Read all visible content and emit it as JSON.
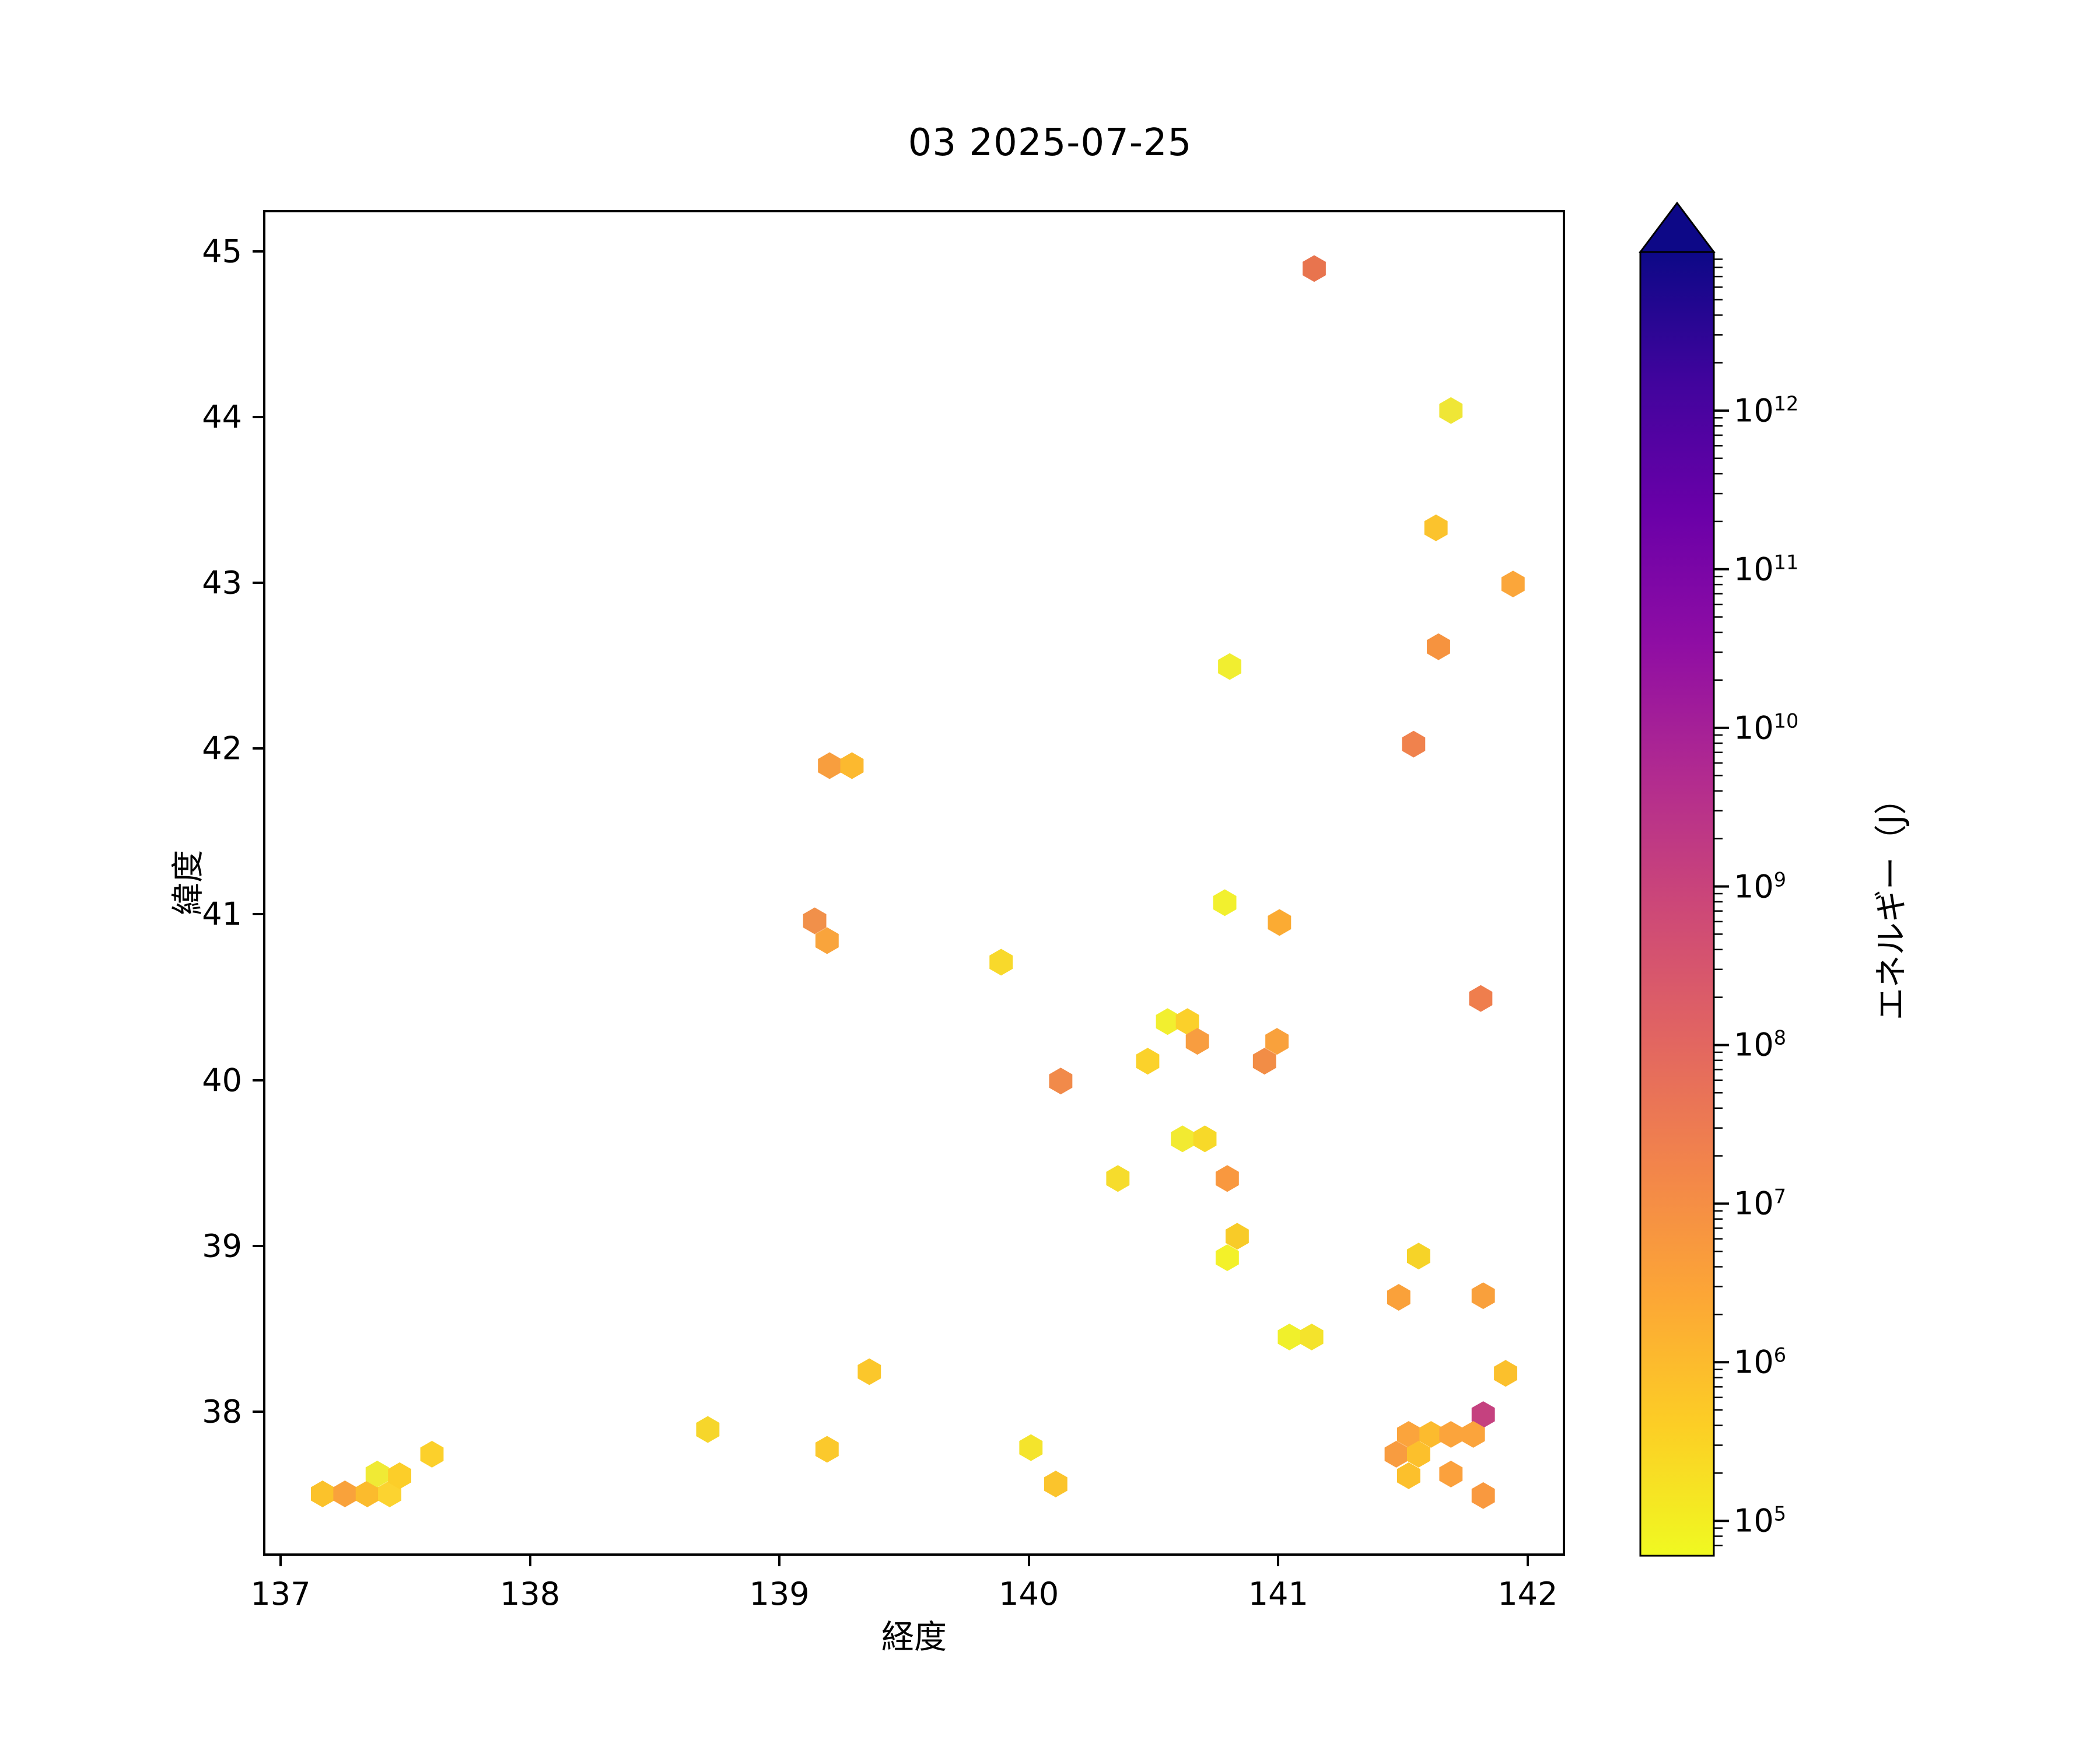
{
  "title": "03 2025-07-25",
  "chart_data": {
    "type": "scatter",
    "marker": "hexagon",
    "title": "03 2025-07-25",
    "xlabel": "経度",
    "ylabel": "緯度",
    "xlim": [
      136.93,
      142.15
    ],
    "ylim": [
      37.13,
      45.25
    ],
    "xticks": [
      137,
      138,
      139,
      140,
      141,
      142
    ],
    "yticks": [
      38,
      39,
      40,
      41,
      42,
      43,
      44,
      45
    ],
    "grid": false,
    "colorbar": {
      "label": "エネルギー（J）",
      "scale": "log",
      "colormap": "plasma_r",
      "extend": "max",
      "range_exponents": [
        4.78,
        13
      ],
      "tick_exponents": [
        5,
        6,
        7,
        8,
        9,
        10,
        11,
        12
      ],
      "tick_base": "10",
      "gradient_top_to_bottom": [
        "#0d0887",
        "#41049d",
        "#6a00a8",
        "#8f0da4",
        "#b12a90",
        "#cc4778",
        "#e16462",
        "#f2844b",
        "#fca636",
        "#fcce25",
        "#f0f921"
      ],
      "over_color": "#0d0887"
    },
    "points": [
      {
        "lon": 141.15,
        "lat": 44.91,
        "energy_j": 100000000.0,
        "color": "#e8744e"
      },
      {
        "lon": 141.7,
        "lat": 44.05,
        "energy_j": 130000.0,
        "color": "#efe636"
      },
      {
        "lon": 141.64,
        "lat": 43.34,
        "energy_j": 700000.0,
        "color": "#fbc32d"
      },
      {
        "lon": 141.95,
        "lat": 43.0,
        "energy_j": 4000000.0,
        "color": "#fba63a"
      },
      {
        "lon": 141.65,
        "lat": 42.62,
        "energy_j": 12000000.0,
        "color": "#f6933f"
      },
      {
        "lon": 140.81,
        "lat": 42.5,
        "energy_j": 100000.0,
        "color": "#f1ee30"
      },
      {
        "lon": 141.55,
        "lat": 42.03,
        "energy_j": 50000000.0,
        "color": "#f0824d"
      },
      {
        "lon": 139.2,
        "lat": 41.9,
        "energy_j": 6000000.0,
        "color": "#f89e3e"
      },
      {
        "lon": 139.29,
        "lat": 41.9,
        "energy_j": 1500000.0,
        "color": "#fcb92f"
      },
      {
        "lon": 140.79,
        "lat": 41.07,
        "energy_j": 90000.0,
        "color": "#f2f02e"
      },
      {
        "lon": 141.01,
        "lat": 40.95,
        "energy_j": 2500000.0,
        "color": "#fbab33"
      },
      {
        "lon": 139.14,
        "lat": 40.96,
        "energy_j": 20000000.0,
        "color": "#f1904a"
      },
      {
        "lon": 139.19,
        "lat": 40.84,
        "energy_j": 4000000.0,
        "color": "#f9a43c"
      },
      {
        "lon": 139.89,
        "lat": 40.71,
        "energy_j": 300000.0,
        "color": "#f8d92b"
      },
      {
        "lon": 141.82,
        "lat": 40.49,
        "energy_j": 60000000.0,
        "color": "#ef7e4d"
      },
      {
        "lon": 140.56,
        "lat": 40.35,
        "energy_j": 100000.0,
        "color": "#f2ef2f"
      },
      {
        "lon": 140.64,
        "lat": 40.35,
        "energy_j": 500000.0,
        "color": "#fbd02a"
      },
      {
        "lon": 140.68,
        "lat": 40.23,
        "energy_j": 6000000.0,
        "color": "#f89d40"
      },
      {
        "lon": 141.0,
        "lat": 40.23,
        "energy_j": 5000000.0,
        "color": "#f9a13c"
      },
      {
        "lon": 140.95,
        "lat": 40.11,
        "energy_j": 20000000.0,
        "color": "#f28d46"
      },
      {
        "lon": 140.48,
        "lat": 40.11,
        "energy_j": 450000.0,
        "color": "#fbd22b"
      },
      {
        "lon": 140.13,
        "lat": 39.99,
        "energy_j": 30000000.0,
        "color": "#f18a4a"
      },
      {
        "lon": 140.62,
        "lat": 39.64,
        "energy_j": 110000.0,
        "color": "#f2ea31"
      },
      {
        "lon": 140.71,
        "lat": 39.64,
        "energy_j": 300000.0,
        "color": "#f7d929"
      },
      {
        "lon": 140.36,
        "lat": 39.4,
        "energy_j": 250000.0,
        "color": "#f6dc2c"
      },
      {
        "lon": 140.8,
        "lat": 39.4,
        "energy_j": 8000000.0,
        "color": "#f9983f"
      },
      {
        "lon": 140.84,
        "lat": 39.05,
        "energy_j": 550000.0,
        "color": "#f8cb28"
      },
      {
        "lon": 140.8,
        "lat": 38.92,
        "energy_j": 95000.0,
        "color": "#f3f129"
      },
      {
        "lon": 141.57,
        "lat": 38.93,
        "energy_j": 400000.0,
        "color": "#f6d328"
      },
      {
        "lon": 141.49,
        "lat": 38.68,
        "energy_j": 5000000.0,
        "color": "#faa13a"
      },
      {
        "lon": 141.83,
        "lat": 38.69,
        "energy_j": 5000000.0,
        "color": "#f9a03c"
      },
      {
        "lon": 141.05,
        "lat": 38.44,
        "energy_j": 100000.0,
        "color": "#f0f02b"
      },
      {
        "lon": 141.14,
        "lat": 38.44,
        "energy_j": 180000.0,
        "color": "#f4e32c"
      },
      {
        "lon": 141.92,
        "lat": 38.22,
        "energy_j": 800000.0,
        "color": "#fbc02c"
      },
      {
        "lon": 141.83,
        "lat": 37.97,
        "energy_j": 1500000000.0,
        "color": "#c5417f"
      },
      {
        "lon": 141.53,
        "lat": 37.85,
        "energy_j": 4000000.0,
        "color": "#fba43c"
      },
      {
        "lon": 141.62,
        "lat": 37.85,
        "energy_j": 1200000.0,
        "color": "#fcbb2e"
      },
      {
        "lon": 141.7,
        "lat": 37.85,
        "energy_j": 4000000.0,
        "color": "#fba43c"
      },
      {
        "lon": 141.79,
        "lat": 37.85,
        "energy_j": 4500000.0,
        "color": "#fba43c"
      },
      {
        "lon": 141.48,
        "lat": 37.73,
        "energy_j": 7000000.0,
        "color": "#f89c40"
      },
      {
        "lon": 141.57,
        "lat": 37.73,
        "energy_j": 800000.0,
        "color": "#fcc02c"
      },
      {
        "lon": 141.53,
        "lat": 37.6,
        "energy_j": 800000.0,
        "color": "#fcc02c"
      },
      {
        "lon": 141.7,
        "lat": 37.61,
        "energy_j": 5000000.0,
        "color": "#fba13d"
      },
      {
        "lon": 141.83,
        "lat": 37.48,
        "energy_j": 8000000.0,
        "color": "#f9993f"
      },
      {
        "lon": 140.01,
        "lat": 37.77,
        "energy_j": 180000.0,
        "color": "#f4e42c"
      },
      {
        "lon": 140.11,
        "lat": 37.55,
        "energy_j": 700000.0,
        "color": "#fbc42c"
      },
      {
        "lon": 137.16,
        "lat": 37.49,
        "energy_j": 700000.0,
        "color": "#fbc22b"
      },
      {
        "lon": 137.25,
        "lat": 37.49,
        "energy_j": 5000000.0,
        "color": "#f9a23b"
      },
      {
        "lon": 137.34,
        "lat": 37.49,
        "energy_j": 1200000.0,
        "color": "#fbbb2d"
      },
      {
        "lon": 137.43,
        "lat": 37.49,
        "energy_j": 450000.0,
        "color": "#fcd330"
      },
      {
        "lon": 137.38,
        "lat": 37.61,
        "energy_j": 120000.0,
        "color": "#f0ea35"
      },
      {
        "lon": 137.47,
        "lat": 37.6,
        "energy_j": 500000.0,
        "color": "#fcce29"
      },
      {
        "lon": 137.6,
        "lat": 37.73,
        "energy_j": 500000.0,
        "color": "#fcd02b"
      },
      {
        "lon": 138.71,
        "lat": 37.88,
        "energy_j": 350000.0,
        "color": "#f6d62b"
      },
      {
        "lon": 139.19,
        "lat": 37.76,
        "energy_j": 600000.0,
        "color": "#fbc92c"
      },
      {
        "lon": 139.36,
        "lat": 38.23,
        "energy_j": 650000.0,
        "color": "#fbc72b"
      }
    ]
  }
}
